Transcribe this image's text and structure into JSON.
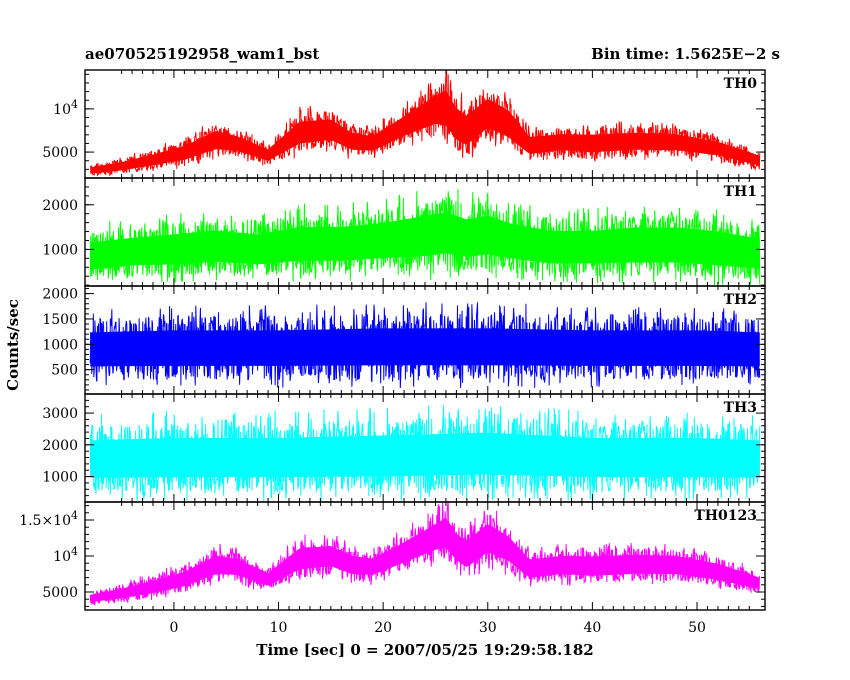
{
  "chart_data": {
    "type": "line",
    "title_left": "ae070525192958_wam1_bst",
    "title_right": "Bin time: 1.5625E−2 s",
    "xlabel": "Time [sec] 0 = 2007/05/25 19:29:58.182",
    "ylabel": "Counts/sec",
    "xlim": [
      -8.5,
      56.5
    ],
    "x_ticks": [
      "0",
      "10",
      "20",
      "30",
      "40",
      "50"
    ],
    "x_tick_values": [
      0,
      10,
      20,
      30,
      40,
      50
    ],
    "grid": false,
    "panels": [
      {
        "name": "TH0",
        "color": "#ff0000",
        "ylim": [
          2000,
          14500
        ],
        "y_ticks": [
          {
            "value": 5000,
            "label": "5000"
          },
          {
            "value": 10000,
            "label": "10^4"
          }
        ],
        "envelope": {
          "x": [
            -8,
            -5,
            -2,
            1,
            4,
            6,
            9,
            12,
            15,
            17,
            19,
            22,
            25,
            26,
            27,
            28,
            30,
            32,
            34,
            37,
            40,
            44,
            48,
            52,
            56
          ],
          "low": [
            2200,
            2500,
            3000,
            3500,
            4500,
            4500,
            3500,
            5000,
            5500,
            4500,
            4500,
            6000,
            7000,
            6500,
            5000,
            4500,
            6500,
            5500,
            4000,
            4500,
            4200,
            4500,
            4500,
            4000,
            3000
          ],
          "high": [
            3500,
            4200,
            5200,
            6300,
            8300,
            7500,
            5800,
            9500,
            9700,
            8000,
            7500,
            10000,
            12800,
            13700,
            11500,
            10500,
            12500,
            11000,
            7500,
            7800,
            7800,
            8000,
            7800,
            6800,
            5000
          ]
        }
      },
      {
        "name": "TH1",
        "color": "#00ff00",
        "ylim": [
          180,
          2600
        ],
        "y_ticks": [
          {
            "value": 1000,
            "label": "1000"
          },
          {
            "value": 2000,
            "label": "2000"
          }
        ],
        "envelope": {
          "x": [
            -8,
            -4,
            0,
            4,
            8,
            12,
            16,
            20,
            24,
            26,
            28,
            30,
            32,
            36,
            40,
            44,
            48,
            52,
            56
          ],
          "low": [
            300,
            400,
            400,
            450,
            400,
            450,
            450,
            500,
            500,
            550,
            500,
            550,
            500,
            400,
            400,
            400,
            400,
            350,
            300
          ],
          "high": [
            1400,
            1500,
            1600,
            1700,
            1600,
            1800,
            1800,
            1900,
            2100,
            2200,
            2000,
            2100,
            1900,
            1700,
            1700,
            1800,
            1800,
            1700,
            1500
          ]
        }
      },
      {
        "name": "TH2",
        "color": "#0000ff",
        "ylim": [
          20,
          2150
        ],
        "y_ticks": [
          {
            "value": 500,
            "label": "500"
          },
          {
            "value": 1000,
            "label": "1000"
          },
          {
            "value": 1500,
            "label": "1500"
          },
          {
            "value": 2000,
            "label": "2000"
          }
        ],
        "envelope": {
          "x": [
            -8,
            0,
            10,
            20,
            30,
            40,
            50,
            56
          ],
          "low": [
            300,
            300,
            300,
            300,
            300,
            300,
            300,
            300
          ],
          "high": [
            1500,
            1550,
            1550,
            1600,
            1600,
            1550,
            1550,
            1500
          ]
        }
      },
      {
        "name": "TH3",
        "color": "#00ffff",
        "ylim": [
          200,
          3600
        ],
        "y_ticks": [
          {
            "value": 1000,
            "label": "1000"
          },
          {
            "value": 2000,
            "label": "2000"
          },
          {
            "value": 3000,
            "label": "3000"
          }
        ],
        "envelope": {
          "x": [
            -8,
            0,
            10,
            20,
            30,
            40,
            50,
            56
          ],
          "low": [
            500,
            500,
            500,
            500,
            550,
            500,
            500,
            500
          ],
          "high": [
            2600,
            2700,
            2700,
            2800,
            2900,
            2700,
            2700,
            2600
          ]
        }
      },
      {
        "name": "TH0123",
        "color": "#ff00ff",
        "ylim": [
          2500,
          17500
        ],
        "y_ticks": [
          {
            "value": 5000,
            "label": "5000"
          },
          {
            "value": 10000,
            "label": "10^4"
          },
          {
            "value": 15000,
            "label": "1.5×10^4"
          }
        ],
        "envelope": {
          "x": [
            -8,
            -5,
            -2,
            1,
            4,
            6,
            9,
            12,
            15,
            17,
            19,
            22,
            25,
            26,
            27,
            28,
            30,
            32,
            34,
            37,
            40,
            44,
            48,
            52,
            56
          ],
          "low": [
            3200,
            3600,
            4200,
            5000,
            6500,
            6500,
            5200,
            7000,
            7500,
            6500,
            6500,
            8000,
            9500,
            9500,
            8000,
            7000,
            9000,
            8000,
            6000,
            6500,
            6200,
            6500,
            6500,
            5800,
            4800
          ],
          "high": [
            5000,
            6000,
            7200,
            8600,
            11000,
            10500,
            8300,
            12200,
            12500,
            11000,
            10500,
            13000,
            15800,
            17000,
            14500,
            13500,
            16000,
            14000,
            10500,
            11000,
            11000,
            11200,
            11000,
            9800,
            7600
          ]
        }
      }
    ]
  }
}
